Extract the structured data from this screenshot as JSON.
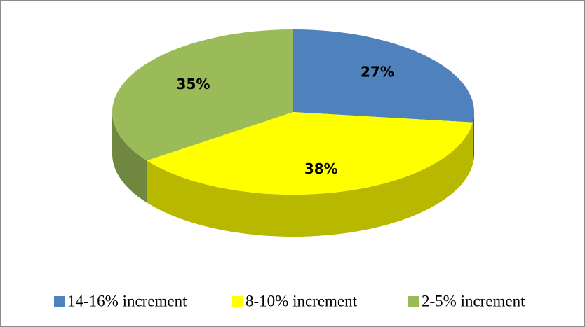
{
  "chart_data": {
    "type": "pie",
    "categories": [
      "14-16% increment",
      "8-10% increment",
      "2-5% increment"
    ],
    "values": [
      27,
      38,
      35
    ],
    "value_labels": [
      "27%",
      "38%",
      "35%"
    ],
    "colors": [
      "#4f81bd",
      "#ffff00",
      "#9bbb59"
    ],
    "legend": "bottom"
  }
}
